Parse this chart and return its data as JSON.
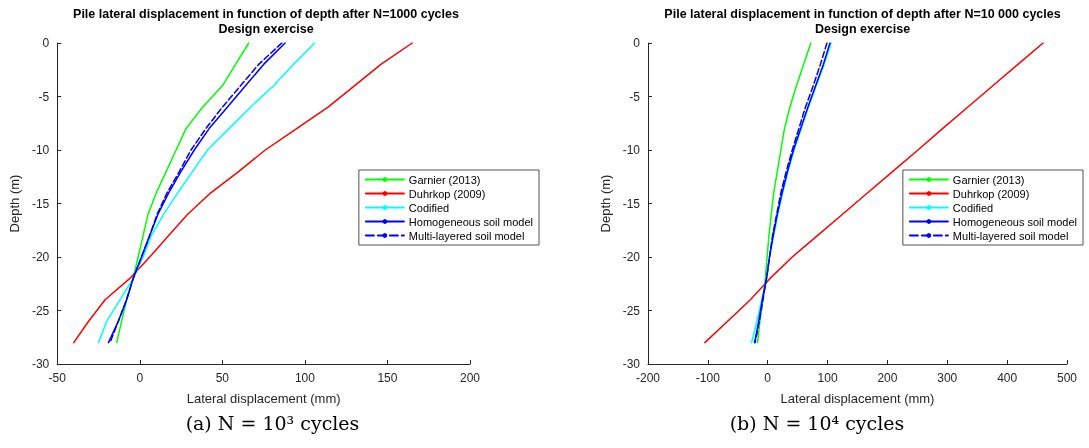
{
  "chart_data": [
    {
      "type": "line",
      "title": "Pile lateral displacement in function of depth after N=1000 cycles",
      "subtitle": "Design exercise",
      "xlabel": "Lateral displacement (mm)",
      "ylabel": "Depth (m)",
      "xlim": [
        -50,
        200
      ],
      "xticks": [
        -50,
        0,
        50,
        100,
        150,
        200
      ],
      "ylim": [
        -30,
        0
      ],
      "yticks": [
        -30,
        -25,
        -20,
        -15,
        -10,
        -5,
        0
      ],
      "grid": false,
      "legend": "right",
      "annotations": [
        "(a) N = 10³ cycles"
      ],
      "series": [
        {
          "name": "Garnier (2013)",
          "color": "#00ff00",
          "x": [
            66,
            58,
            50,
            38,
            28,
            22,
            16,
            10,
            5,
            2,
            -1,
            -4,
            -8,
            -11,
            -14
          ],
          "values": [
            0,
            -2,
            -4,
            -6,
            -8,
            -10,
            -12,
            -14,
            -16,
            -18,
            -20,
            -22,
            -24,
            -26,
            -28
          ]
        },
        {
          "name": "Duhrkop (2009)",
          "color": "#ff0000",
          "x": [
            165,
            146,
            130,
            114,
            95,
            76,
            60,
            43,
            29,
            17.5,
            6,
            -6,
            -21,
            -31,
            -40
          ],
          "values": [
            0,
            -2,
            -4,
            -6,
            -8,
            -10,
            -12,
            -14,
            -16,
            -18,
            -20,
            -22,
            -24,
            -26,
            -28
          ]
        },
        {
          "name": "Codified",
          "color": "#00ffff",
          "x": [
            106,
            93,
            81,
            67,
            54,
            41,
            32,
            23,
            14.5,
            7,
            2,
            -4,
            -12,
            -20,
            -25
          ],
          "values": [
            0,
            -2,
            -4,
            -6,
            -8,
            -10,
            -12,
            -14,
            -16,
            -18,
            -20,
            -22,
            -24,
            -26,
            -28
          ]
        },
        {
          "name": "Homogeneous soil model",
          "color": "#0000ff",
          "x": [
            88,
            75,
            64,
            53,
            42,
            33,
            25,
            17.5,
            11,
            6,
            1,
            -4,
            -8,
            -13,
            -19
          ],
          "values": [
            0,
            -2,
            -4,
            -6,
            -8,
            -10,
            -12,
            -14,
            -16,
            -18,
            -20,
            -22,
            -24,
            -26,
            -28
          ]
        },
        {
          "name": "Multi-layered soil model",
          "color": "#0000ff",
          "line_style": "dashed",
          "x": [
            86,
            72,
            61,
            50,
            40,
            31,
            24,
            16.5,
            10.5,
            6,
            1,
            -4,
            -8,
            -13,
            -18
          ],
          "values": [
            0,
            -2,
            -4,
            -6,
            -8,
            -10,
            -12,
            -14,
            -16,
            -18,
            -20,
            -22,
            -24,
            -26,
            -28
          ]
        }
      ]
    },
    {
      "type": "line",
      "title": "Pile lateral displacement in function of depth after N=10 000 cycles",
      "subtitle": "Design exercise",
      "xlabel": "Lateral displacement (mm)",
      "ylabel": "Depth (m)",
      "xlim": [
        -200,
        500
      ],
      "xticks": [
        -200,
        -100,
        0,
        100,
        200,
        300,
        400,
        500
      ],
      "ylim": [
        -30,
        0
      ],
      "yticks": [
        -30,
        -25,
        -20,
        -15,
        -10,
        -5,
        0
      ],
      "grid": false,
      "legend": "right",
      "annotations": [
        "(b) N = 10⁴ cycles"
      ],
      "series": [
        {
          "name": "Garnier (2013)",
          "color": "#00ff00",
          "x": [
            72,
            60,
            48,
            37,
            28,
            22,
            16,
            10,
            6,
            2,
            -1,
            -4,
            -8,
            -13,
            -17
          ],
          "values": [
            0,
            -2,
            -4,
            -6,
            -8,
            -10,
            -12,
            -14,
            -16,
            -18,
            -20,
            -22,
            -24,
            -26,
            -28
          ]
        },
        {
          "name": "Duhrkop (2009)",
          "color": "#ff0000",
          "x": [
            460,
            418,
            376,
            334,
            292,
            251,
            209,
            167,
            125,
            83,
            41,
            4,
            -29,
            -67,
            -105
          ],
          "values": [
            0,
            -2,
            -4,
            -6,
            -8,
            -10,
            -12,
            -14,
            -16,
            -18,
            -20,
            -22,
            -24,
            -26,
            -28
          ]
        },
        {
          "name": "Codified",
          "color": "#00ffff",
          "x": [
            106,
            94,
            81,
            68,
            56,
            44,
            34,
            25,
            17,
            10,
            3,
            -2,
            -10,
            -18,
            -27
          ],
          "values": [
            0,
            -2,
            -4,
            -6,
            -8,
            -10,
            -12,
            -14,
            -16,
            -18,
            -20,
            -22,
            -24,
            -26,
            -28
          ]
        },
        {
          "name": "Homogeneous soil model",
          "color": "#0000ff",
          "x": [
            104,
            93,
            80,
            67,
            55,
            43,
            33,
            24,
            16,
            9,
            3,
            -2,
            -9,
            -15,
            -22
          ],
          "values": [
            0,
            -2,
            -4,
            -6,
            -8,
            -10,
            -12,
            -14,
            -16,
            -18,
            -20,
            -22,
            -24,
            -26,
            -28
          ]
        },
        {
          "name": "Multi-layered soil model",
          "color": "#0000ff",
          "line_style": "dashed",
          "x": [
            99,
            88,
            76,
            63,
            52,
            41,
            31,
            22,
            15,
            8,
            3,
            -2,
            -8,
            -14,
            -21
          ],
          "values": [
            0,
            -2,
            -4,
            -6,
            -8,
            -10,
            -12,
            -14,
            -16,
            -18,
            -20,
            -22,
            -24,
            -26,
            -28
          ]
        }
      ]
    }
  ]
}
